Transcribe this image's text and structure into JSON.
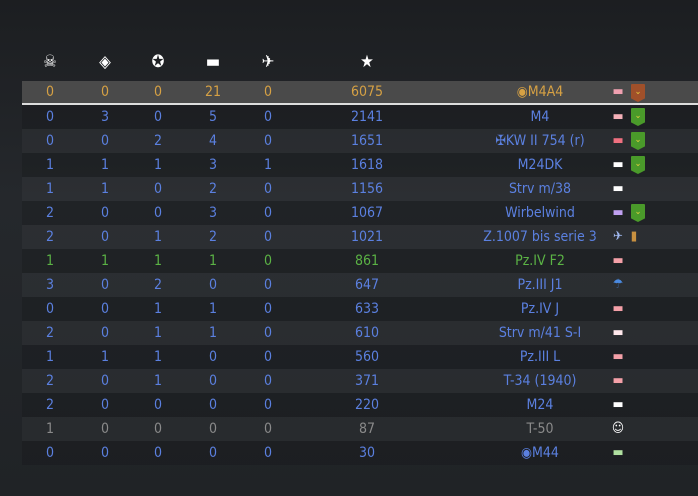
{
  "header": {
    "icons": [
      "skull-crossbones-icon",
      "capture-zone-icon",
      "award-wreath-icon",
      "tank-icon",
      "plane-icon",
      "star-icon"
    ],
    "glyphs": [
      "☠",
      "◈",
      "✪",
      "▬",
      "✈",
      "★"
    ]
  },
  "colors": {
    "blue": "#5b80e0",
    "orange": "#d6a144",
    "green": "#5bb345",
    "gray": "#8a8a8a"
  },
  "rows": [
    {
      "v": [
        "0",
        "0",
        "0",
        "21",
        "0",
        "6075"
      ],
      "name": "◉M4A4",
      "color": "orange",
      "me": true,
      "icon": "tank-icon",
      "vc": "#f0a0b0",
      "badge": "#a0502a"
    },
    {
      "v": [
        "0",
        "3",
        "0",
        "5",
        "0",
        "2141"
      ],
      "name": "M4",
      "color": "blue",
      "icon": "tank-icon",
      "vc": "#f4b0b8",
      "badge": "#4a9a2a"
    },
    {
      "v": [
        "0",
        "0",
        "2",
        "4",
        "0",
        "1651"
      ],
      "name": "✠KW II 754 (r)",
      "color": "blue",
      "icon": "tank-icon",
      "vc": "#f07080",
      "badge": "#4a9a2a"
    },
    {
      "v": [
        "1",
        "1",
        "1",
        "3",
        "1",
        "1618"
      ],
      "name": "M24DK",
      "color": "blue",
      "icon": "tank-icon",
      "vc": "#ffffff",
      "badge": "#4a9a2a"
    },
    {
      "v": [
        "1",
        "1",
        "0",
        "2",
        "0",
        "1156"
      ],
      "name": "Strv m/38",
      "color": "blue",
      "icon": "tank-icon",
      "vc": "#ffffff"
    },
    {
      "v": [
        "2",
        "0",
        "0",
        "3",
        "0",
        "1067"
      ],
      "name": "Wirbelwind",
      "color": "blue",
      "icon": "spaa-icon",
      "vc": "#c0a0f0",
      "badge": "#4a9a2a"
    },
    {
      "v": [
        "2",
        "0",
        "1",
        "2",
        "0",
        "1021"
      ],
      "name": "Z.1007 bis serie 3",
      "color": "blue",
      "icon": "bomber-icon",
      "vc": "#a0b8f0",
      "extra": "bomb-icon"
    },
    {
      "v": [
        "1",
        "1",
        "1",
        "1",
        "0",
        "861"
      ],
      "name": "Pz.IV F2",
      "color": "green",
      "icon": "tank-icon",
      "vc": "#f4a0a8"
    },
    {
      "v": [
        "3",
        "0",
        "2",
        "0",
        "0",
        "647"
      ],
      "name": "Pz.III J1",
      "color": "blue",
      "icon": "parachute-icon",
      "vc": "#4a8ae0"
    },
    {
      "v": [
        "0",
        "0",
        "1",
        "1",
        "0",
        "633"
      ],
      "name": "Pz.IV J",
      "color": "blue",
      "icon": "tank-icon",
      "vc": "#f4a0a8"
    },
    {
      "v": [
        "2",
        "0",
        "1",
        "1",
        "0",
        "610"
      ],
      "name": "Strv m/41 S-I",
      "color": "blue",
      "icon": "tank-icon",
      "vc": "#ffe8ec"
    },
    {
      "v": [
        "1",
        "1",
        "1",
        "0",
        "0",
        "560"
      ],
      "name": "Pz.III L",
      "color": "blue",
      "icon": "tank-icon",
      "vc": "#f4a0a8"
    },
    {
      "v": [
        "2",
        "0",
        "1",
        "0",
        "0",
        "371"
      ],
      "name": "T-34 (1940)",
      "color": "blue",
      "icon": "tank-icon",
      "vc": "#f4a0a8"
    },
    {
      "v": [
        "2",
        "0",
        "0",
        "0",
        "0",
        "220"
      ],
      "name": "M24",
      "color": "blue",
      "icon": "tank-icon",
      "vc": "#ffffff"
    },
    {
      "v": [
        "1",
        "0",
        "0",
        "0",
        "0",
        "87"
      ],
      "name": "T-50",
      "color": "gray",
      "icon": "crew-icon",
      "vc": "#ffffff"
    },
    {
      "v": [
        "0",
        "0",
        "0",
        "0",
        "0",
        "30"
      ],
      "name": "◉M44",
      "color": "blue",
      "icon": "spg-icon",
      "vc": "#b0e0a0"
    }
  ]
}
